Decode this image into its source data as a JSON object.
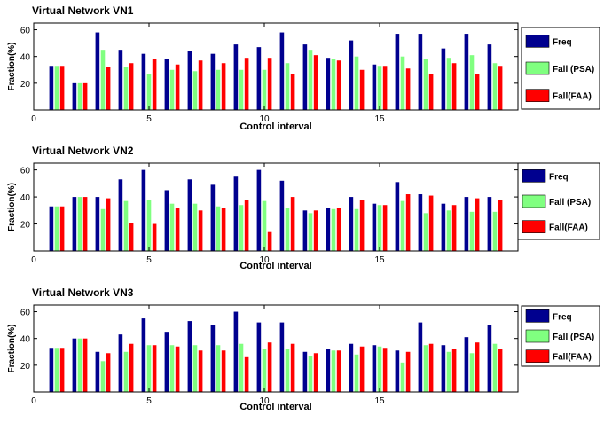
{
  "colors": {
    "freq": "#00008f",
    "fall_psa": "#80ff80",
    "fall_faa": "#ff0000"
  },
  "chart_data": [
    {
      "type": "bar",
      "title": "Virtual Network VN1",
      "xlabel": "Control interval",
      "ylabel": "Fraction(%)",
      "xlim": [
        0,
        21
      ],
      "ylim": [
        0,
        65
      ],
      "xticks": [
        0,
        5,
        10,
        15
      ],
      "yticks": [
        20,
        40,
        60
      ],
      "legend_position": "top-right",
      "x": [
        1,
        2,
        3,
        4,
        5,
        6,
        7,
        8,
        9,
        10,
        11,
        12,
        13,
        14,
        15,
        16,
        17,
        18,
        19,
        20
      ],
      "series": [
        {
          "name": "Freq",
          "color": "#00008f",
          "values": [
            33,
            20,
            58,
            45,
            42,
            38,
            44,
            42,
            49,
            47,
            58,
            49,
            39,
            52,
            34,
            57,
            57,
            46,
            57,
            49
          ]
        },
        {
          "name": "Fall (PSA)",
          "color": "#80ff80",
          "values": [
            33,
            20,
            45,
            32,
            27,
            30,
            29,
            30,
            30,
            30,
            35,
            45,
            38,
            40,
            33,
            40,
            38,
            39,
            41,
            35
          ]
        },
        {
          "name": "Fall(FAA)",
          "color": "#ff0000",
          "values": [
            33,
            20,
            32,
            35,
            38,
            34,
            37,
            35,
            39,
            39,
            27,
            41,
            37,
            30,
            33,
            31,
            27,
            35,
            27,
            33
          ]
        }
      ]
    },
    {
      "type": "bar",
      "title": "Virtual Network VN2",
      "xlabel": "Control interval",
      "ylabel": "Fraction(%)",
      "xlim": [
        0,
        21
      ],
      "ylim": [
        0,
        65
      ],
      "xticks": [
        0,
        5,
        10,
        15
      ],
      "yticks": [
        20,
        40,
        60
      ],
      "legend_position": "top-right",
      "x": [
        1,
        2,
        3,
        4,
        5,
        6,
        7,
        8,
        9,
        10,
        11,
        12,
        13,
        14,
        15,
        16,
        17,
        18,
        19,
        20
      ],
      "series": [
        {
          "name": "Freq",
          "color": "#00008f",
          "values": [
            33,
            40,
            40,
            53,
            60,
            45,
            53,
            49,
            55,
            60,
            52,
            30,
            32,
            40,
            35,
            51,
            42,
            35,
            40,
            40
          ]
        },
        {
          "name": "Fall (PSA)",
          "color": "#80ff80",
          "values": [
            33,
            40,
            31,
            37,
            38,
            35,
            35,
            33,
            34,
            37,
            32,
            28,
            31,
            31,
            34,
            37,
            28,
            30,
            29,
            29
          ]
        },
        {
          "name": "Fall(FAA)",
          "color": "#ff0000",
          "values": [
            33,
            40,
            39,
            21,
            20,
            32,
            30,
            32,
            38,
            14,
            40,
            30,
            32,
            38,
            34,
            42,
            41,
            34,
            39,
            38
          ]
        }
      ]
    },
    {
      "type": "bar",
      "title": "Virtual Network VN3",
      "xlabel": "Control interval",
      "ylabel": "Fraction(%)",
      "xlim": [
        0,
        21
      ],
      "ylim": [
        0,
        65
      ],
      "xticks": [
        0,
        5,
        10,
        15
      ],
      "yticks": [
        20,
        40,
        60
      ],
      "legend_position": "top-right",
      "x": [
        1,
        2,
        3,
        4,
        5,
        6,
        7,
        8,
        9,
        10,
        11,
        12,
        13,
        14,
        15,
        16,
        17,
        18,
        19,
        20
      ],
      "series": [
        {
          "name": "Freq",
          "color": "#00008f",
          "values": [
            33,
            40,
            30,
            43,
            55,
            45,
            53,
            50,
            60,
            52,
            52,
            30,
            32,
            36,
            35,
            31,
            52,
            35,
            41,
            50
          ]
        },
        {
          "name": "Fall (PSA)",
          "color": "#80ff80",
          "values": [
            33,
            40,
            23,
            30,
            35,
            35,
            35,
            35,
            36,
            32,
            32,
            27,
            31,
            28,
            34,
            22,
            35,
            30,
            29,
            36
          ]
        },
        {
          "name": "Fall(FAA)",
          "color": "#ff0000",
          "values": [
            33,
            40,
            29,
            36,
            35,
            34,
            31,
            31,
            26,
            37,
            36,
            29,
            31,
            34,
            33,
            30,
            36,
            32,
            37,
            32
          ]
        }
      ]
    }
  ]
}
